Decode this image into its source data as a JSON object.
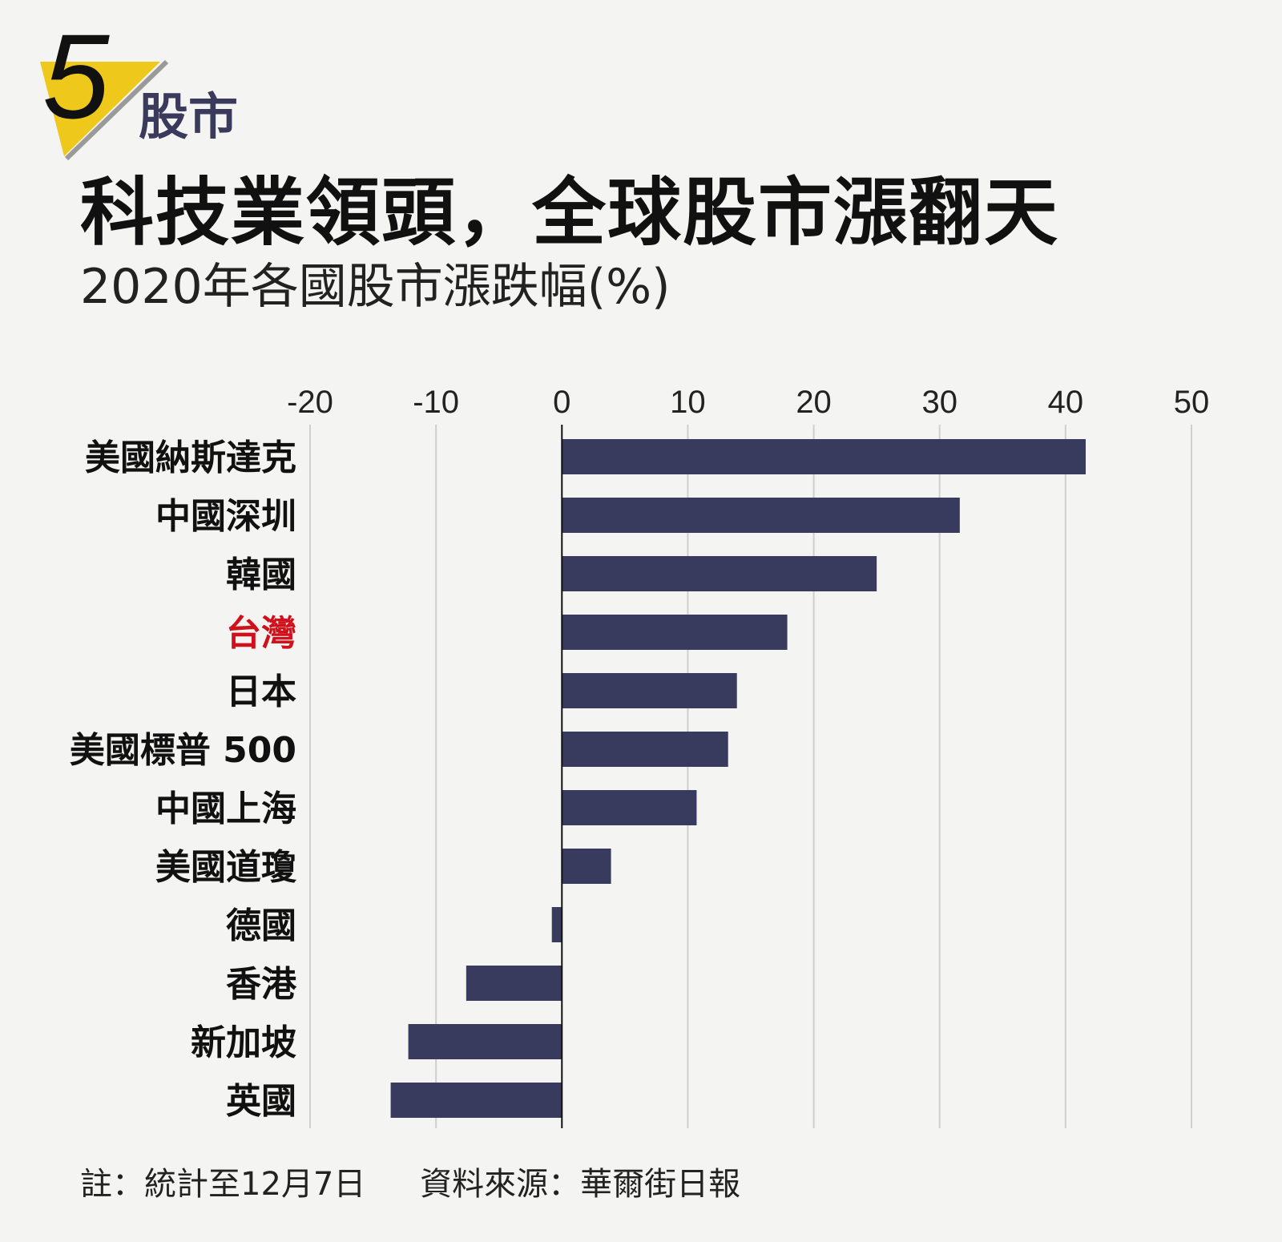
{
  "badge": {
    "number": "5",
    "label": "股市"
  },
  "title": "科技業領頭，全球股市漲翻天",
  "subtitle": "2020年各國股市漲跌幅(%)",
  "footnote": {
    "note": "註：統計至12月7日",
    "source": "資料來源：華爾街日報"
  },
  "colors": {
    "bar": "#383a5e",
    "highlight_label": "#d0101a",
    "badge_yellow": "#eec91c",
    "grid": "#cfcfcf"
  },
  "chart_data": {
    "type": "bar",
    "orientation": "horizontal",
    "categories": [
      "美國納斯達克",
      "中國深圳",
      "韓國",
      "台灣",
      "日本",
      "美國標普 500",
      "中國上海",
      "美國道瓊",
      "德國",
      "香港",
      "新加坡",
      "英國"
    ],
    "values": [
      41.6,
      31.6,
      25.0,
      17.9,
      13.9,
      13.2,
      10.7,
      3.9,
      -0.8,
      -7.6,
      -12.2,
      -13.6
    ],
    "highlight": "台灣",
    "xticks": [
      -20,
      -10,
      0,
      10,
      20,
      30,
      40,
      50
    ],
    "xlim": [
      -20,
      50
    ],
    "grid": true
  }
}
